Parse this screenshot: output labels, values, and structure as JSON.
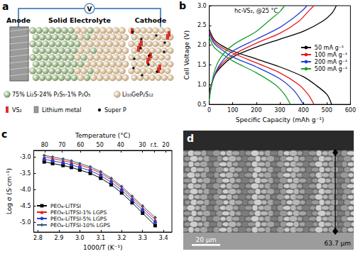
{
  "panels": {
    "a": {
      "title": "a",
      "circuit_label": "V",
      "layers": [
        "Anode",
        "Solid Electrolyte",
        "Cathode"
      ],
      "legend_items": [
        {
          "label": "75% Li₂S-24% P₂S₅-1% P₂O₅",
          "color": "#6f9a58"
        },
        {
          "label": "Li₁₀GeP₂S₁₂",
          "color": "#c9a574"
        },
        {
          "label": "VS₂",
          "color": "#d8332b"
        },
        {
          "label": "Lithium metal",
          "color": "#9a9a9a"
        },
        {
          "label": "Super P",
          "color": "#111111"
        }
      ]
    },
    "d": {
      "title": "d",
      "scale_bar": "20 μm",
      "thickness": "63.7 μm"
    }
  },
  "chart_data": [
    {
      "title": "b",
      "type": "line",
      "annotation": "hc-VS₂, @25 °C",
      "x_label": "Specific Capacity (mAh g⁻¹)",
      "y_label": "Cell Voltage (V)",
      "xlim": [
        0,
        600
      ],
      "xticks": [
        0,
        100,
        200,
        300,
        400,
        500,
        600
      ],
      "ylim": [
        0.5,
        3.0
      ],
      "yticks": [
        0.5,
        {
          "value": 1,
          "label": "1.0"
        },
        1.5,
        {
          "value": 2,
          "label": "2.0"
        },
        2.5,
        {
          "value": 3,
          "label": "3.0"
        }
      ],
      "grid": false,
      "legend": "right",
      "series": [
        {
          "name": "50 mA g⁻¹",
          "color": "#000000",
          "x": [
            0,
            20,
            50,
            100,
            200,
            300,
            400,
            450,
            500,
            520,
            null,
            0,
            20,
            50,
            100,
            200,
            300,
            400,
            480,
            520,
            540
          ],
          "values": [
            2.4,
            2.15,
            2.0,
            1.85,
            1.65,
            1.45,
            1.2,
            1.0,
            0.75,
            0.5,
            null,
            0.8,
            1.2,
            1.45,
            1.7,
            1.95,
            2.15,
            2.35,
            2.6,
            2.8,
            3.0
          ]
        },
        {
          "name": "100 mA g⁻¹",
          "color": "#e41a1c",
          "x": [
            0,
            20,
            50,
            100,
            200,
            300,
            380,
            420,
            445,
            null,
            0,
            20,
            50,
            100,
            200,
            300,
            380,
            420,
            445
          ],
          "values": [
            2.35,
            2.1,
            1.95,
            1.8,
            1.55,
            1.3,
            1.0,
            0.75,
            0.5,
            null,
            0.75,
            1.2,
            1.5,
            1.75,
            2.05,
            2.3,
            2.6,
            2.85,
            3.0
          ]
        },
        {
          "name": "200 mA g⁻¹",
          "color": "#1f3fd1",
          "x": [
            0,
            20,
            50,
            100,
            200,
            300,
            360,
            390,
            400,
            null,
            0,
            20,
            50,
            100,
            200,
            300,
            360,
            400,
            415
          ],
          "values": [
            2.3,
            2.05,
            1.9,
            1.7,
            1.45,
            1.15,
            0.85,
            0.6,
            0.5,
            null,
            0.7,
            1.2,
            1.55,
            1.85,
            2.15,
            2.45,
            2.7,
            2.9,
            3.0
          ]
        },
        {
          "name": "500 mA g⁻¹",
          "color": "#1a9e2a",
          "x": [
            0,
            20,
            50,
            100,
            200,
            280,
            320,
            345,
            null,
            0,
            20,
            50,
            100,
            200,
            260,
            300,
            320
          ],
          "values": [
            2.2,
            1.95,
            1.8,
            1.6,
            1.3,
            1.0,
            0.75,
            0.5,
            null,
            0.6,
            1.3,
            1.7,
            2.0,
            2.35,
            2.65,
            2.85,
            3.0
          ]
        }
      ]
    },
    {
      "title": "c",
      "type": "line",
      "x_label": "1000/T (K⁻¹)",
      "y_label": "Log σ (S·cm⁻¹)",
      "x2_label": "Temperature (°C)",
      "xlim": [
        2.78,
        3.44
      ],
      "xticks": [
        2.8,
        2.9,
        {
          "value": 3,
          "label": "3.0"
        },
        3.1,
        3.2,
        3.3,
        3.4
      ],
      "x2ticks": [
        {
          "value": 2.832,
          "label": "80"
        },
        {
          "value": 2.915,
          "label": "70"
        },
        {
          "value": 3.003,
          "label": "60"
        },
        {
          "value": 3.096,
          "label": "50"
        },
        {
          "value": 3.195,
          "label": "40"
        },
        {
          "value": 3.299,
          "label": "30"
        },
        {
          "value": 3.356,
          "label": "r.t."
        },
        {
          "value": 3.411,
          "label": "20"
        }
      ],
      "ylim": [
        -5.3,
        -2.8
      ],
      "yticks": [
        {
          "value": -5,
          "label": "-5.0"
        },
        -4.5,
        {
          "value": -4,
          "label": "-4.0"
        },
        -3.5,
        {
          "value": -3,
          "label": "-3.0"
        }
      ],
      "grid": false,
      "legend": "lower left",
      "x": [
        2.83,
        2.87,
        2.92,
        2.96,
        3.0,
        3.05,
        3.1,
        3.15,
        3.2,
        3.25,
        3.3,
        3.36
      ],
      "series": [
        {
          "name": "PEO₈-LiTFSI",
          "color": "#000000",
          "marker": "square",
          "values": [
            -3.15,
            -3.2,
            -3.26,
            -3.32,
            -3.4,
            -3.5,
            -3.65,
            -3.85,
            -4.1,
            -4.4,
            -4.72,
            -5.1
          ]
        },
        {
          "name": "PEO₈-LiTFSI-1% LGPS",
          "color": "#e41a1c",
          "marker": "triangle",
          "values": [
            -3.0,
            -3.05,
            -3.11,
            -3.17,
            -3.25,
            -3.35,
            -3.5,
            -3.7,
            -3.95,
            -4.25,
            -4.56,
            -4.92
          ]
        },
        {
          "name": "PEO₈-LiTFSI-5% LGPS",
          "color": "#1f3fd1",
          "marker": "circle",
          "values": [
            -3.07,
            -3.12,
            -3.18,
            -3.24,
            -3.32,
            -3.42,
            -3.57,
            -3.77,
            -4.02,
            -4.32,
            -4.63,
            -5.0
          ]
        },
        {
          "name": "PEO₈-LiTFSI-10% LGPS",
          "color": "#3a5a78",
          "marker": "diamond",
          "values": [
            -2.95,
            -3.0,
            -3.06,
            -3.12,
            -3.2,
            -3.3,
            -3.45,
            -3.65,
            -3.9,
            -4.2,
            -4.5,
            -4.85
          ]
        }
      ]
    }
  ]
}
